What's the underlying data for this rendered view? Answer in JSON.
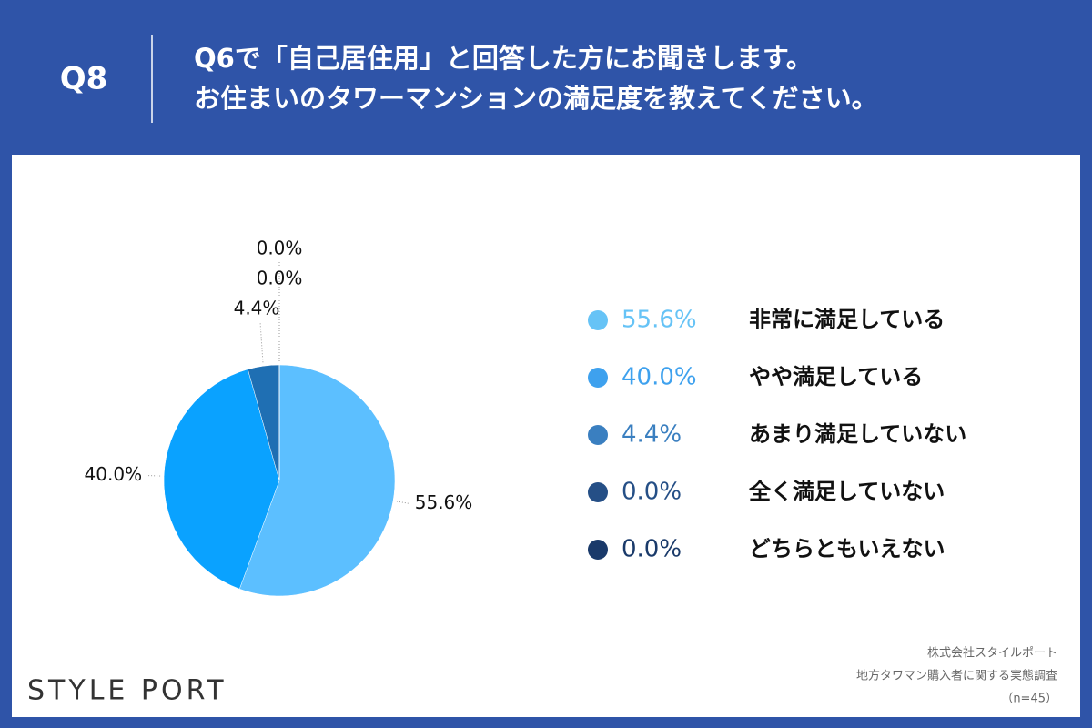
{
  "header": {
    "label": "Q8",
    "question": [
      "Q6で「自己居住用」と回答した方にお聞きします。",
      "お住まいのタワーマンションの満足度を教えてください。"
    ]
  },
  "chart_data": {
    "type": "pie",
    "categories": [
      "非常に満足している",
      "やや満足している",
      "あまり満足していない",
      "全く満足していない",
      "どちらともいえない"
    ],
    "values": [
      55.6,
      40.0,
      4.4,
      0.0,
      0.0
    ],
    "value_labels": [
      "55.6%",
      "40.0%",
      "4.4%",
      "0.0%",
      "0.0%"
    ],
    "colors": [
      "#5cbfff",
      "#0aa2ff",
      "#1f6fb3",
      "#24518a",
      "#173a6b"
    ],
    "legend_colors": [
      "#66c3f6",
      "#3ea1ee",
      "#3a7fc0",
      "#254f86",
      "#1a3a6a"
    ]
  },
  "footer": {
    "logo": "STYLE PORT",
    "source": [
      "株式会社スタイルポート",
      "地方タワマン購入者に関する実態調査",
      "（n=45）"
    ]
  }
}
